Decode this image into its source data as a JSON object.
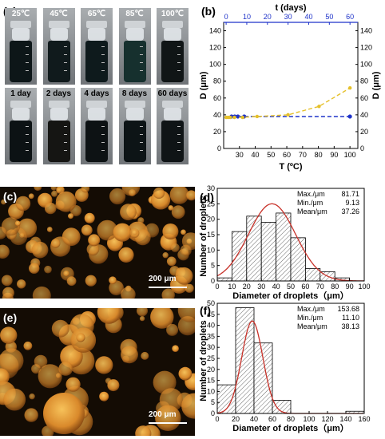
{
  "panels": {
    "a": "(a)",
    "b": "(b)",
    "c": "(c)",
    "d": "(d)",
    "e": "(e)",
    "f": "(f)"
  },
  "vials": {
    "temps": [
      "25℃",
      "45℃",
      "65℃",
      "85℃",
      "100℃"
    ],
    "days": [
      "1 day",
      "2 days",
      "4 days",
      "8 days",
      "60 days"
    ]
  },
  "micrographs": {
    "scale_c": "200 μm",
    "scale_e": "200 μm"
  },
  "colors": {
    "blue": "#1f33c9",
    "gold": "#e5c02a",
    "red": "#c8322a",
    "droplet": "#e8a033"
  },
  "chart_data": [
    {
      "id": "b",
      "type": "line",
      "xlabel": "T (ºC)",
      "x2label": "t (days)",
      "ylabel": "D (μm)",
      "y2label": "D (μm)",
      "xlim": [
        20,
        105
      ],
      "xticks": [
        30,
        40,
        50,
        60,
        70,
        80,
        90,
        100
      ],
      "x2lim": [
        -1.2,
        63.8
      ],
      "x2ticks": [
        0,
        10,
        20,
        30,
        40,
        50,
        60
      ],
      "ylim": [
        0,
        150
      ],
      "yticks": [
        0,
        20,
        40,
        60,
        80,
        100,
        120,
        140
      ],
      "series": [
        {
          "axis": "bottom",
          "color": "#1f33c9",
          "style": "dashed",
          "x": [
            25,
            27,
            29,
            33,
            100
          ],
          "y": [
            38,
            38,
            38,
            38,
            38
          ]
        },
        {
          "axis": "top",
          "color": "#e5c02a",
          "style": "dashed",
          "x": [
            0,
            1,
            2,
            4,
            8,
            15,
            30,
            45,
            60
          ],
          "y": [
            37,
            37,
            37,
            37,
            37,
            38,
            40,
            50,
            72
          ]
        }
      ]
    },
    {
      "id": "d",
      "type": "bar",
      "xlabel": "Diameter of droplets（μm）",
      "ylabel": "Number of droplets",
      "xlim": [
        0,
        100
      ],
      "xticks": [
        0,
        10,
        20,
        30,
        40,
        50,
        60,
        70,
        80,
        90,
        100
      ],
      "ylim": [
        0,
        30
      ],
      "yticks": [
        0,
        5,
        10,
        15,
        20,
        25,
        30
      ],
      "bin_width": 10,
      "bin_starts": [
        0,
        10,
        20,
        30,
        40,
        50,
        60,
        70,
        80
      ],
      "counts": [
        1,
        16,
        21,
        19,
        22,
        14,
        4,
        3,
        1
      ],
      "fit": {
        "type": "gaussian",
        "mean": 37.26,
        "sigma": 16,
        "peak": 25
      },
      "stats": {
        "labels": [
          "Max./μm",
          "Min./μm",
          "Mean/μm"
        ],
        "values": [
          "81.71",
          "9.13",
          "37.26"
        ]
      }
    },
    {
      "id": "f",
      "type": "bar",
      "xlabel": "Diameter of droplets（μm）",
      "ylabel": "Number of droplets",
      "xlim": [
        0,
        160
      ],
      "xticks": [
        0,
        20,
        40,
        60,
        80,
        100,
        120,
        140,
        160
      ],
      "ylim": [
        0,
        50
      ],
      "yticks": [
        0,
        5,
        10,
        15,
        20,
        25,
        30,
        35,
        40,
        45,
        50
      ],
      "bin_width": 20,
      "bin_starts": [
        0,
        20,
        40,
        60,
        80,
        100,
        120,
        140
      ],
      "counts": [
        13,
        48,
        32,
        6,
        0,
        0,
        0,
        1
      ],
      "fit": {
        "type": "gaussian",
        "mean": 38.13,
        "sigma": 11.5,
        "peak": 42
      },
      "stats": {
        "labels": [
          "Max./μm",
          "Min./μm",
          "Mean/μm"
        ],
        "values": [
          "153.68",
          "11.10",
          "38.13"
        ]
      }
    }
  ]
}
